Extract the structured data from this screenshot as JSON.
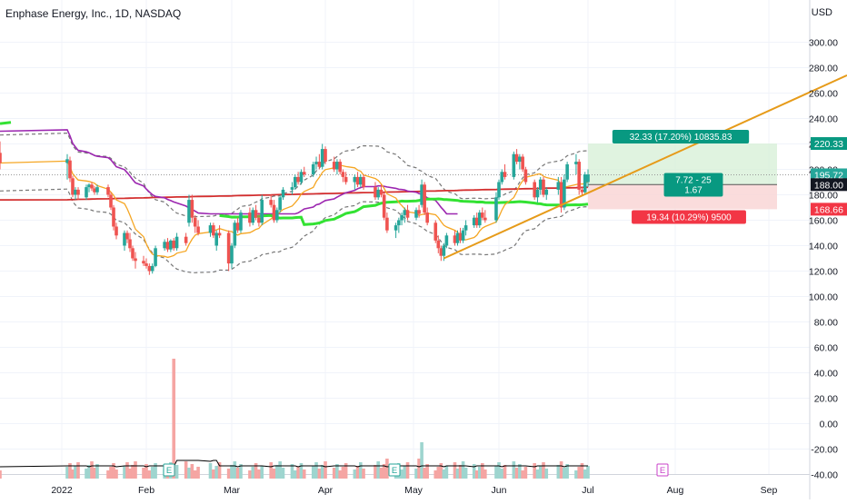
{
  "header": {
    "title": "Enphase Energy, Inc., 1D, NASDAQ",
    "currency": "USD"
  },
  "colors": {
    "up": "#26a69a",
    "down": "#ef5350",
    "ma_short": "#f5a623",
    "ma_mid": "#9c27b0",
    "ma_green": "#33e233",
    "ma_long": "#d32f2f",
    "trendline": "#e69b1a",
    "profit_fill": "#d8f0d8",
    "loss_fill": "#f9d6d6",
    "vol_ma": "#000000",
    "env": "#777777",
    "axis_text": "#131722"
  },
  "chart_data": {
    "type": "candlestick",
    "title": "Enphase Energy, Inc., 1D, NASDAQ",
    "price_axis": {
      "ticks": [
        "300.00",
        "280.00",
        "260.00",
        "240.00",
        "220.00",
        "200.00",
        "180.00",
        "160.00",
        "140.00",
        "120.00",
        "100.00",
        "80.00",
        "60.00",
        "40.00",
        "20.00",
        "0.00",
        "-20.00",
        "-40.00"
      ],
      "range": [
        -40,
        320
      ]
    },
    "time_axis": {
      "labels": [
        "2022",
        "Feb",
        "Mar",
        "Apr",
        "May",
        "Jun",
        "Jul",
        "Aug",
        "Sep"
      ]
    },
    "last_price_labels": [
      {
        "text": "220.33",
        "kind": "target"
      },
      {
        "text": "195.72",
        "kind": "last"
      },
      {
        "text": "188.00",
        "kind": "entry"
      },
      {
        "text": "168.66",
        "kind": "stop"
      }
    ],
    "position_tool": {
      "target_label": "32.33 (17.20%) 10835.83",
      "mid_label": [
        "7.72 - 25",
        "1.67"
      ],
      "stop_label": "19.34 (10.29%) 9500",
      "entry": 188.0,
      "target": 220.33,
      "stop": 168.66
    },
    "earnings_markers": [
      "E",
      "E",
      "E"
    ],
    "trendline": {
      "from": {
        "date": "May 12",
        "price": 130
      },
      "to": {
        "date": "Sep 15",
        "price": 274
      }
    },
    "candles": [
      {
        "d": "Dec 30",
        "o": 213,
        "h": 222,
        "l": 200,
        "c": 205
      },
      {
        "d": "Jan 3",
        "o": 205,
        "h": 212,
        "l": 192,
        "c": 208
      },
      {
        "d": "Jan 4",
        "o": 207,
        "h": 210,
        "l": 190,
        "c": 193
      },
      {
        "d": "Jan 5",
        "o": 193,
        "h": 195,
        "l": 178,
        "c": 180
      },
      {
        "d": "Jan 6",
        "o": 180,
        "h": 186,
        "l": 176,
        "c": 184
      },
      {
        "d": "Jan 7",
        "o": 184,
        "h": 186,
        "l": 176,
        "c": 180
      },
      {
        "d": "Jan 10",
        "o": 178,
        "h": 188,
        "l": 176,
        "c": 186
      },
      {
        "d": "Jan 11",
        "o": 186,
        "h": 189,
        "l": 182,
        "c": 188
      },
      {
        "d": "Jan 12",
        "o": 188,
        "h": 190,
        "l": 183,
        "c": 185
      },
      {
        "d": "Jan 13",
        "o": 185,
        "h": 187,
        "l": 180,
        "c": 182
      },
      {
        "d": "Jan 14",
        "o": 182,
        "h": 188,
        "l": 180,
        "c": 186
      },
      {
        "d": "Jan 18",
        "o": 186,
        "h": 188,
        "l": 178,
        "c": 180
      },
      {
        "d": "Jan 19",
        "o": 180,
        "h": 182,
        "l": 168,
        "c": 170
      },
      {
        "d": "Jan 20",
        "o": 170,
        "h": 172,
        "l": 152,
        "c": 155
      },
      {
        "d": "Jan 21",
        "o": 155,
        "h": 158,
        "l": 145,
        "c": 148
      },
      {
        "d": "Jan 24",
        "o": 140,
        "h": 152,
        "l": 136,
        "c": 150
      },
      {
        "d": "Jan 25",
        "o": 150,
        "h": 152,
        "l": 142,
        "c": 145
      },
      {
        "d": "Jan 26",
        "o": 145,
        "h": 150,
        "l": 135,
        "c": 138
      },
      {
        "d": "Jan 27",
        "o": 138,
        "h": 140,
        "l": 128,
        "c": 130
      },
      {
        "d": "Jan 28",
        "o": 130,
        "h": 135,
        "l": 122,
        "c": 128
      },
      {
        "d": "Jan 31",
        "o": 128,
        "h": 132,
        "l": 124,
        "c": 126
      },
      {
        "d": "Feb 1",
        "o": 126,
        "h": 130,
        "l": 122,
        "c": 124
      },
      {
        "d": "Feb 2",
        "o": 124,
        "h": 126,
        "l": 117,
        "c": 120
      },
      {
        "d": "Feb 3",
        "o": 120,
        "h": 126,
        "l": 118,
        "c": 124
      },
      {
        "d": "Feb 4",
        "o": 124,
        "h": 140,
        "l": 123,
        "c": 138
      },
      {
        "d": "Feb 7",
        "o": 138,
        "h": 145,
        "l": 136,
        "c": 143
      },
      {
        "d": "Feb 8",
        "o": 143,
        "h": 146,
        "l": 135,
        "c": 137
      },
      {
        "d": "Feb 9",
        "o": 137,
        "h": 145,
        "l": 135,
        "c": 144
      },
      {
        "d": "Feb 10",
        "o": 144,
        "h": 146,
        "l": 136,
        "c": 138
      },
      {
        "d": "Feb 11",
        "o": 138,
        "h": 150,
        "l": 136,
        "c": 147
      },
      {
        "d": "Feb 14",
        "o": 147,
        "h": 150,
        "l": 140,
        "c": 142
      },
      {
        "d": "Feb 15",
        "o": 158,
        "h": 180,
        "l": 155,
        "c": 176
      },
      {
        "d": "Feb 16",
        "o": 176,
        "h": 180,
        "l": 158,
        "c": 162
      },
      {
        "d": "Feb 17",
        "o": 162,
        "h": 164,
        "l": 150,
        "c": 155
      },
      {
        "d": "Feb 18",
        "o": 155,
        "h": 160,
        "l": 148,
        "c": 150
      },
      {
        "d": "Feb 22",
        "o": 150,
        "h": 158,
        "l": 147,
        "c": 156
      },
      {
        "d": "Feb 23",
        "o": 156,
        "h": 158,
        "l": 146,
        "c": 148
      },
      {
        "d": "Feb 24",
        "o": 140,
        "h": 152,
        "l": 136,
        "c": 150
      },
      {
        "d": "Feb 25",
        "o": 150,
        "h": 156,
        "l": 146,
        "c": 148
      },
      {
        "d": "Feb 28",
        "o": 150,
        "h": 152,
        "l": 120,
        "c": 126
      },
      {
        "d": "Mar 1",
        "o": 126,
        "h": 142,
        "l": 122,
        "c": 140
      },
      {
        "d": "Mar 2",
        "o": 140,
        "h": 160,
        "l": 138,
        "c": 158
      },
      {
        "d": "Mar 3",
        "o": 158,
        "h": 162,
        "l": 150,
        "c": 152
      },
      {
        "d": "Mar 4",
        "o": 152,
        "h": 168,
        "l": 150,
        "c": 166
      },
      {
        "d": "Mar 7",
        "o": 166,
        "h": 170,
        "l": 155,
        "c": 158
      },
      {
        "d": "Mar 8",
        "o": 158,
        "h": 170,
        "l": 156,
        "c": 168
      },
      {
        "d": "Mar 9",
        "o": 168,
        "h": 172,
        "l": 160,
        "c": 162
      },
      {
        "d": "Mar 10",
        "o": 162,
        "h": 166,
        "l": 155,
        "c": 158
      },
      {
        "d": "Mar 11",
        "o": 158,
        "h": 180,
        "l": 156,
        "c": 176
      },
      {
        "d": "Mar 14",
        "o": 176,
        "h": 180,
        "l": 170,
        "c": 172
      },
      {
        "d": "Mar 15",
        "o": 172,
        "h": 176,
        "l": 158,
        "c": 160
      },
      {
        "d": "Mar 16",
        "o": 160,
        "h": 170,
        "l": 158,
        "c": 168
      },
      {
        "d": "Mar 17",
        "o": 168,
        "h": 180,
        "l": 166,
        "c": 178
      },
      {
        "d": "Mar 18",
        "o": 178,
        "h": 186,
        "l": 176,
        "c": 184
      },
      {
        "d": "Mar 21",
        "o": 184,
        "h": 190,
        "l": 180,
        "c": 186
      },
      {
        "d": "Mar 22",
        "o": 186,
        "h": 196,
        "l": 184,
        "c": 194
      },
      {
        "d": "Mar 23",
        "o": 194,
        "h": 198,
        "l": 188,
        "c": 190
      },
      {
        "d": "Mar 24",
        "o": 190,
        "h": 200,
        "l": 188,
        "c": 198
      },
      {
        "d": "Mar 25",
        "o": 198,
        "h": 202,
        "l": 194,
        "c": 196
      },
      {
        "d": "Mar 28",
        "o": 196,
        "h": 206,
        "l": 194,
        "c": 204
      },
      {
        "d": "Mar 29",
        "o": 204,
        "h": 210,
        "l": 200,
        "c": 206
      },
      {
        "d": "Mar 30",
        "o": 206,
        "h": 212,
        "l": 200,
        "c": 202
      },
      {
        "d": "Mar 31",
        "o": 202,
        "h": 220,
        "l": 200,
        "c": 216
      },
      {
        "d": "Apr 1",
        "o": 216,
        "h": 218,
        "l": 204,
        "c": 206
      },
      {
        "d": "Apr 4",
        "o": 206,
        "h": 210,
        "l": 198,
        "c": 200
      },
      {
        "d": "Apr 5",
        "o": 200,
        "h": 208,
        "l": 196,
        "c": 206
      },
      {
        "d": "Apr 6",
        "o": 206,
        "h": 208,
        "l": 196,
        "c": 198
      },
      {
        "d": "Apr 7",
        "o": 198,
        "h": 200,
        "l": 190,
        "c": 194
      },
      {
        "d": "Apr 8",
        "o": 194,
        "h": 198,
        "l": 188,
        "c": 190
      },
      {
        "d": "Apr 11",
        "o": 190,
        "h": 196,
        "l": 184,
        "c": 194
      },
      {
        "d": "Apr 12",
        "o": 194,
        "h": 198,
        "l": 186,
        "c": 188
      },
      {
        "d": "Apr 13",
        "o": 188,
        "h": 196,
        "l": 186,
        "c": 194
      },
      {
        "d": "Apr 14",
        "o": 194,
        "h": 196,
        "l": 184,
        "c": 186
      },
      {
        "d": "Apr 18",
        "o": 186,
        "h": 190,
        "l": 176,
        "c": 178
      },
      {
        "d": "Apr 19",
        "o": 178,
        "h": 186,
        "l": 176,
        "c": 184
      },
      {
        "d": "Apr 20",
        "o": 184,
        "h": 188,
        "l": 178,
        "c": 180
      },
      {
        "d": "Apr 21",
        "o": 180,
        "h": 182,
        "l": 160,
        "c": 162
      },
      {
        "d": "Apr 22",
        "o": 162,
        "h": 166,
        "l": 150,
        "c": 152
      },
      {
        "d": "Apr 25",
        "o": 152,
        "h": 158,
        "l": 146,
        "c": 156
      },
      {
        "d": "Apr 26",
        "o": 156,
        "h": 162,
        "l": 150,
        "c": 160
      },
      {
        "d": "Apr 27",
        "o": 160,
        "h": 166,
        "l": 156,
        "c": 164
      },
      {
        "d": "Apr 28",
        "o": 164,
        "h": 170,
        "l": 158,
        "c": 168
      },
      {
        "d": "Apr 29",
        "o": 168,
        "h": 172,
        "l": 160,
        "c": 162
      },
      {
        "d": "May 2",
        "o": 162,
        "h": 170,
        "l": 160,
        "c": 168
      },
      {
        "d": "May 3",
        "o": 168,
        "h": 172,
        "l": 162,
        "c": 165
      },
      {
        "d": "May 4",
        "o": 172,
        "h": 192,
        "l": 170,
        "c": 188
      },
      {
        "d": "May 5",
        "o": 188,
        "h": 190,
        "l": 164,
        "c": 166
      },
      {
        "d": "May 6",
        "o": 166,
        "h": 170,
        "l": 156,
        "c": 158
      },
      {
        "d": "May 9",
        "o": 158,
        "h": 160,
        "l": 142,
        "c": 144
      },
      {
        "d": "May 10",
        "o": 144,
        "h": 148,
        "l": 134,
        "c": 138
      },
      {
        "d": "May 11",
        "o": 138,
        "h": 140,
        "l": 128,
        "c": 132
      },
      {
        "d": "May 12",
        "o": 132,
        "h": 142,
        "l": 128,
        "c": 140
      },
      {
        "d": "May 13",
        "o": 140,
        "h": 150,
        "l": 138,
        "c": 148
      },
      {
        "d": "May 16",
        "o": 148,
        "h": 152,
        "l": 140,
        "c": 142
      },
      {
        "d": "May 17",
        "o": 142,
        "h": 152,
        "l": 140,
        "c": 150
      },
      {
        "d": "May 18",
        "o": 150,
        "h": 154,
        "l": 142,
        "c": 144
      },
      {
        "d": "May 19",
        "o": 144,
        "h": 154,
        "l": 142,
        "c": 152
      },
      {
        "d": "May 20",
        "o": 152,
        "h": 160,
        "l": 148,
        "c": 156
      },
      {
        "d": "May 23",
        "o": 156,
        "h": 164,
        "l": 154,
        "c": 162
      },
      {
        "d": "May 24",
        "o": 162,
        "h": 166,
        "l": 154,
        "c": 156
      },
      {
        "d": "May 25",
        "o": 156,
        "h": 168,
        "l": 154,
        "c": 166
      },
      {
        "d": "May 26",
        "o": 166,
        "h": 170,
        "l": 160,
        "c": 162
      },
      {
        "d": "May 27",
        "o": 162,
        "h": 168,
        "l": 158,
        "c": 160
      },
      {
        "d": "May 31",
        "o": 160,
        "h": 182,
        "l": 158,
        "c": 178
      },
      {
        "d": "Jun 1",
        "o": 178,
        "h": 192,
        "l": 176,
        "c": 190
      },
      {
        "d": "Jun 2",
        "o": 190,
        "h": 200,
        "l": 188,
        "c": 198
      },
      {
        "d": "Jun 3",
        "o": 198,
        "h": 204,
        "l": 192,
        "c": 194
      },
      {
        "d": "Jun 6",
        "o": 194,
        "h": 214,
        "l": 192,
        "c": 212
      },
      {
        "d": "Jun 7",
        "o": 212,
        "h": 216,
        "l": 204,
        "c": 206
      },
      {
        "d": "Jun 8",
        "o": 206,
        "h": 212,
        "l": 200,
        "c": 210
      },
      {
        "d": "Jun 9",
        "o": 210,
        "h": 212,
        "l": 198,
        "c": 200
      },
      {
        "d": "Jun 10",
        "o": 200,
        "h": 202,
        "l": 188,
        "c": 190
      },
      {
        "d": "Jun 13",
        "o": 190,
        "h": 192,
        "l": 176,
        "c": 178
      },
      {
        "d": "Jun 14",
        "o": 178,
        "h": 186,
        "l": 174,
        "c": 184
      },
      {
        "d": "Jun 15",
        "o": 184,
        "h": 194,
        "l": 180,
        "c": 192
      },
      {
        "d": "Jun 16",
        "o": 192,
        "h": 194,
        "l": 178,
        "c": 180
      },
      {
        "d": "Jun 17",
        "o": 180,
        "h": 186,
        "l": 176,
        "c": 184
      },
      {
        "d": "Jun 21",
        "o": 184,
        "h": 194,
        "l": 180,
        "c": 190
      },
      {
        "d": "Jun 22",
        "o": 190,
        "h": 194,
        "l": 166,
        "c": 170
      },
      {
        "d": "Jun 23",
        "o": 170,
        "h": 196,
        "l": 168,
        "c": 192
      },
      {
        "d": "Jun 24",
        "o": 192,
        "h": 206,
        "l": 190,
        "c": 204
      },
      {
        "d": "Jun 27",
        "o": 204,
        "h": 212,
        "l": 196,
        "c": 206
      },
      {
        "d": "Jun 28",
        "o": 206,
        "h": 208,
        "l": 180,
        "c": 184
      },
      {
        "d": "Jun 29",
        "o": 184,
        "h": 186,
        "l": 180,
        "c": 182
      },
      {
        "d": "Jun 30",
        "o": 182,
        "h": 198,
        "l": 180,
        "c": 196
      },
      {
        "d": "Jul 1",
        "o": 190,
        "h": 200,
        "l": 186,
        "c": 196
      }
    ]
  }
}
